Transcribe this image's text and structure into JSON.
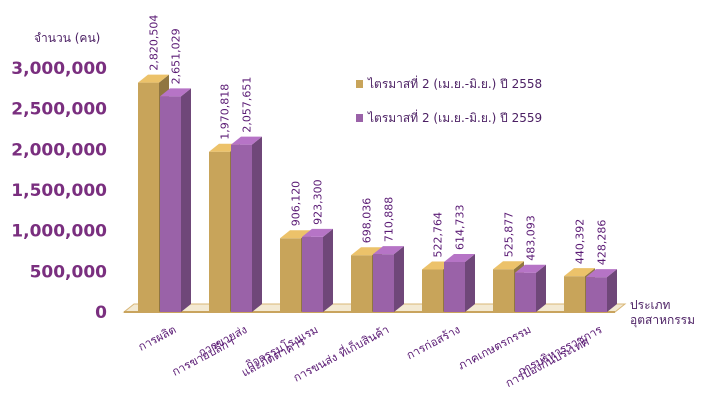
{
  "chart_data": {
    "type": "bar",
    "ylabel": "จำนวน (คน)",
    "xlabel": [
      "ประเภท",
      "อุตสาหกรรม"
    ],
    "ylim": [
      0,
      3000000
    ],
    "yticks": [
      "0",
      "500,000",
      "1,000,000",
      "1,500,000",
      "2,000,000",
      "2,500,000",
      "3,000,000"
    ],
    "categories": [
      [
        "การผลิต"
      ],
      [
        "การขายส่ง",
        "การขายปลีกฯ"
      ],
      [
        "กิจกรรมโรงแรม",
        "และภัตตาคาร"
      ],
      [
        "การขนส่ง ที่เก็บสินค้า"
      ],
      [
        "การก่อสร้าง"
      ],
      [
        "ภาคเกษตรกรรม"
      ],
      [
        "การบริหารราชการ",
        "การป้องกันประเทศ"
      ]
    ],
    "series": [
      {
        "name": "ไตรมาสที่ 2 (เม.ย.-มิ.ย.) ปี 2558",
        "color": "#c8a45a",
        "values": [
          2820504,
          1970818,
          906120,
          698036,
          522764,
          525877,
          440392
        ],
        "labels": [
          "2,820,504",
          "1,970,818",
          "906,120",
          "698,036",
          "522,764",
          "525,877",
          "440,392"
        ]
      },
      {
        "name": "ไตรมาสที่ 2 (เม.ย.-มิ.ย.) ปี 2559",
        "color": "#9a62a8",
        "values": [
          2651029,
          2057651,
          923300,
          710888,
          614733,
          483093,
          428286
        ],
        "labels": [
          "2,651,029",
          "2,057,651",
          "923,300",
          "710,888",
          "614,733",
          "483,093",
          "428,286"
        ]
      }
    ],
    "legend_position": "top-right",
    "style": "3d-columns",
    "grid": false
  }
}
